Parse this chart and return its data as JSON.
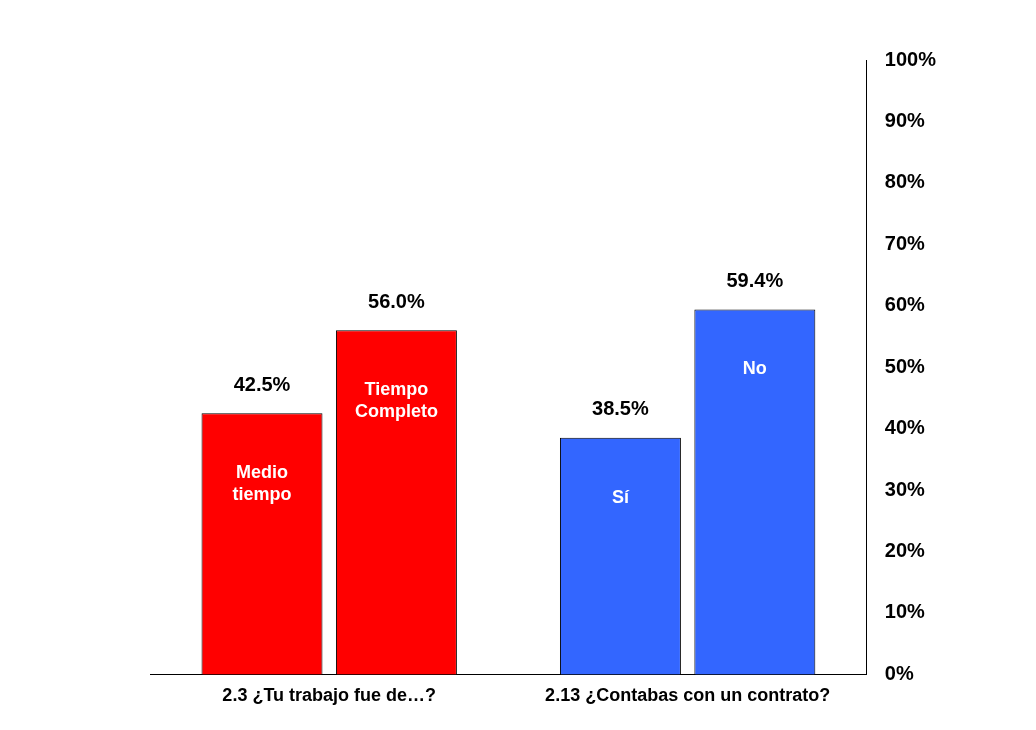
{
  "chart_data": {
    "type": "bar",
    "categories": [
      "2.3 ¿Tu trabajo fue de…?",
      "2.13 ¿Contabas con un contrato?"
    ],
    "series": [
      {
        "name": "Medio tiempo",
        "color": "#ff0000",
        "values": [
          42.5,
          null
        ],
        "value_labels": [
          "42.5%",
          null
        ]
      },
      {
        "name": "Tiempo Completo",
        "color": "#ff0000",
        "values": [
          56.0,
          null
        ],
        "value_labels": [
          "56.0%",
          null
        ]
      },
      {
        "name": "Sí",
        "color": "#3366ff",
        "values": [
          null,
          38.5
        ],
        "value_labels": [
          null,
          "38.5%"
        ]
      },
      {
        "name": "No",
        "color": "#3366ff",
        "values": [
          null,
          59.4
        ],
        "value_labels": [
          null,
          "59.4%"
        ]
      }
    ],
    "ylim": [
      0,
      100
    ],
    "yticks": [
      {
        "value": 0,
        "label": "0%"
      },
      {
        "value": 10,
        "label": "10%"
      },
      {
        "value": 20,
        "label": "20%"
      },
      {
        "value": 30,
        "label": "30%"
      },
      {
        "value": 40,
        "label": "40%"
      },
      {
        "value": 50,
        "label": "50%"
      },
      {
        "value": 60,
        "label": "60%"
      },
      {
        "value": 70,
        "label": "70%"
      },
      {
        "value": 80,
        "label": "80%"
      },
      {
        "value": 90,
        "label": "90%"
      },
      {
        "value": 100,
        "label": "100%"
      }
    ],
    "grid": false,
    "legend": false
  }
}
